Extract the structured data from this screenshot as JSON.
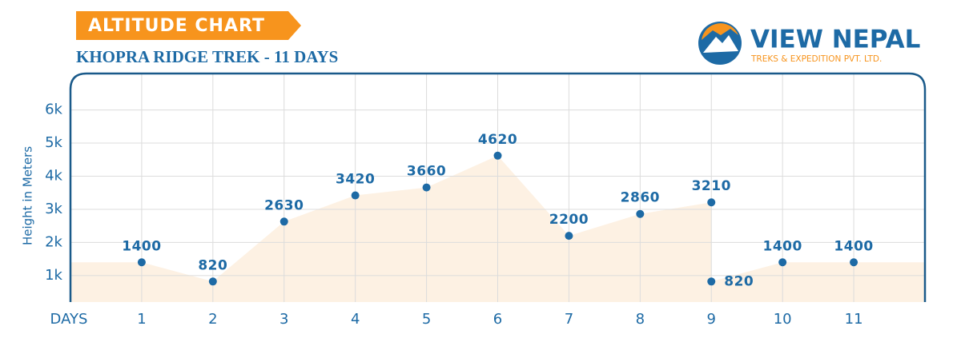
{
  "chart_data": {
    "type": "area",
    "title": "ALTITUDE CHART",
    "subtitle": "KHOPRA RIDGE TREK - 11 DAYS",
    "y_label": "Height in Meters",
    "x_label": "DAYS",
    "x": [
      1,
      2,
      3,
      4,
      5,
      6,
      7,
      8,
      9,
      9,
      10,
      11
    ],
    "values": [
      1400,
      820,
      2630,
      3420,
      3660,
      4620,
      2200,
      2860,
      3210,
      820,
      1400,
      1400
    ],
    "xlim": [
      0,
      12
    ],
    "xticks": [
      1,
      2,
      3,
      4,
      5,
      6,
      7,
      8,
      9,
      10,
      11
    ],
    "ylim": [
      200,
      7100
    ],
    "yticks": [
      {
        "value": 1000,
        "label": "1k"
      },
      {
        "value": 2000,
        "label": "2k"
      },
      {
        "value": 3000,
        "label": "3k"
      },
      {
        "value": 4000,
        "label": "4k"
      },
      {
        "value": 5000,
        "label": "5k"
      },
      {
        "value": 6000,
        "label": "6k"
      }
    ],
    "grid": true,
    "color": "#1d6aa5",
    "fill": "#fdf1e3"
  },
  "logo": {
    "name": "VIEW NEPAL",
    "tagline": "TREKS & EXPEDITION PVT. LTD."
  }
}
